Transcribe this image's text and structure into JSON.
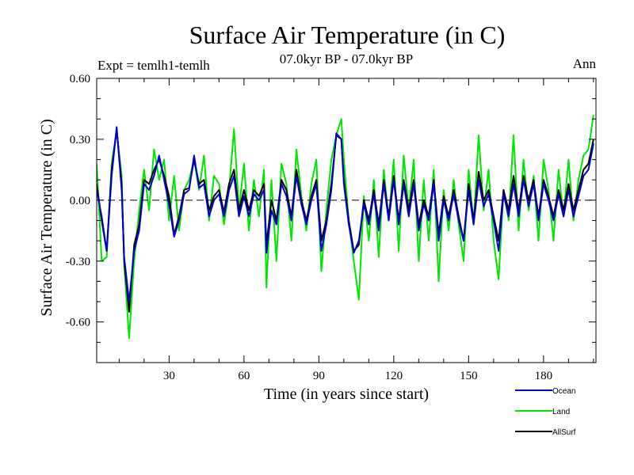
{
  "chart_data": {
    "type": "line",
    "title": "Surface Air Temperature (in C)",
    "subtitle_left": "Expt = temlh1-temlh",
    "subtitle_center": "07.0kyr BP - 07.0kyr BP",
    "subtitle_right": "Ann",
    "xlabel": "Time (in years since start)",
    "ylabel": "Surface Air Temperature (in C)",
    "xlim": [
      1,
      201
    ],
    "ylim": [
      -0.8,
      0.6
    ],
    "xticks": [
      30,
      60,
      90,
      120,
      150,
      180
    ],
    "xtick_labels": [
      "30",
      "60",
      "90",
      "120",
      "150",
      "180"
    ],
    "yticks": [
      0.6,
      0.3,
      0.0,
      -0.3,
      -0.6
    ],
    "ytick_labels": [
      "0.60",
      "0.30",
      "0.00",
      "-0.30",
      "-0.60"
    ],
    "zero_line": true,
    "series": [
      {
        "name": "Land",
        "color": "#00e600",
        "x": [
          1,
          3,
          5,
          7,
          9,
          11,
          12,
          14,
          16,
          18,
          20,
          22,
          24,
          26,
          28,
          30,
          32,
          34,
          36,
          38,
          40,
          42,
          44,
          46,
          48,
          50,
          52,
          54,
          56,
          58,
          60,
          62,
          64,
          66,
          68,
          69,
          71,
          73,
          75,
          77,
          79,
          81,
          83,
          85,
          87,
          89,
          91,
          93,
          95,
          97,
          99,
          100,
          102,
          104,
          106,
          108,
          110,
          112,
          114,
          116,
          118,
          120,
          122,
          124,
          126,
          128,
          130,
          132,
          134,
          136,
          138,
          140,
          142,
          144,
          146,
          148,
          150,
          152,
          154,
          156,
          158,
          160,
          162,
          164,
          166,
          168,
          170,
          172,
          174,
          176,
          178,
          180,
          182,
          184,
          186,
          188,
          190,
          192,
          194,
          196,
          198,
          200
        ],
        "values": [
          0.18,
          -0.3,
          -0.28,
          0.18,
          0.34,
          0.12,
          -0.32,
          -0.68,
          -0.3,
          -0.05,
          0.15,
          -0.05,
          0.25,
          0.1,
          0.2,
          -0.1,
          0.12,
          -0.15,
          0.05,
          0.1,
          0.2,
          0.05,
          0.22,
          -0.1,
          0.12,
          0.08,
          -0.12,
          0.05,
          0.35,
          -0.05,
          0.18,
          -0.15,
          0.1,
          -0.08,
          0.15,
          -0.43,
          0.1,
          -0.3,
          0.18,
          0.08,
          -0.2,
          0.25,
          0.02,
          -0.15,
          0.08,
          0.2,
          -0.35,
          -0.05,
          0.2,
          0.32,
          0.4,
          0.2,
          -0.1,
          -0.3,
          -0.49,
          0.02,
          -0.2,
          0.1,
          -0.28,
          0.15,
          -0.1,
          0.2,
          -0.25,
          0.22,
          -0.05,
          0.2,
          -0.3,
          0.1,
          -0.2,
          0.15,
          -0.4,
          0.05,
          -0.15,
          0.1,
          -0.12,
          -0.3,
          0.15,
          -0.12,
          0.32,
          -0.05,
          0.15,
          -0.2,
          -0.39,
          0.05,
          -0.1,
          0.32,
          -0.15,
          0.2,
          -0.05,
          0.12,
          -0.2,
          0.2,
          0.05,
          -0.2,
          0.15,
          -0.08,
          0.2,
          -0.1,
          0.1,
          0.22,
          0.25,
          0.42
        ]
      },
      {
        "name": "AllSurf",
        "color": "#000000",
        "x": [
          1,
          3,
          5,
          7,
          9,
          11,
          12,
          14,
          16,
          18,
          20,
          22,
          24,
          26,
          28,
          30,
          32,
          34,
          36,
          38,
          40,
          42,
          44,
          46,
          48,
          50,
          52,
          54,
          56,
          58,
          60,
          62,
          64,
          66,
          68,
          69,
          71,
          73,
          75,
          77,
          79,
          81,
          83,
          85,
          87,
          89,
          91,
          93,
          95,
          97,
          99,
          100,
          102,
          104,
          106,
          108,
          110,
          112,
          114,
          116,
          118,
          120,
          122,
          124,
          126,
          128,
          130,
          132,
          134,
          136,
          138,
          140,
          142,
          144,
          146,
          148,
          150,
          152,
          154,
          156,
          158,
          160,
          162,
          164,
          166,
          168,
          170,
          172,
          174,
          176,
          178,
          180,
          182,
          184,
          186,
          188,
          190,
          192,
          194,
          196,
          198,
          200
        ],
        "values": [
          0.08,
          -0.1,
          -0.25,
          0.15,
          0.35,
          0.08,
          -0.3,
          -0.55,
          -0.22,
          -0.12,
          0.1,
          0.08,
          0.15,
          0.2,
          0.12,
          0.02,
          -0.17,
          -0.08,
          0.05,
          0.06,
          0.2,
          0.08,
          0.1,
          -0.05,
          0.02,
          0.05,
          -0.06,
          0.08,
          0.15,
          -0.05,
          0.05,
          -0.05,
          0.05,
          0.02,
          0.08,
          -0.22,
          0.0,
          -0.1,
          0.1,
          0.05,
          -0.08,
          0.15,
          0.0,
          -0.1,
          0.02,
          0.1,
          -0.2,
          -0.1,
          0.08,
          0.32,
          0.3,
          0.1,
          -0.1,
          -0.25,
          -0.22,
          0.0,
          -0.1,
          0.05,
          -0.12,
          0.1,
          -0.08,
          0.12,
          -0.1,
          0.1,
          -0.05,
          0.1,
          -0.12,
          0.0,
          -0.08,
          0.1,
          -0.17,
          0.02,
          -0.08,
          0.05,
          -0.08,
          -0.2,
          0.08,
          -0.1,
          0.14,
          0.0,
          0.05,
          -0.08,
          -0.2,
          0.05,
          -0.05,
          0.12,
          -0.05,
          0.12,
          0.0,
          0.1,
          -0.08,
          0.1,
          0.02,
          -0.08,
          0.05,
          -0.05,
          0.08,
          -0.05,
          0.05,
          0.15,
          0.18,
          0.3
        ]
      },
      {
        "name": "Ocean",
        "color": "#0000cc",
        "x": [
          1,
          3,
          5,
          7,
          9,
          11,
          12,
          14,
          16,
          18,
          20,
          22,
          24,
          26,
          28,
          30,
          32,
          34,
          36,
          38,
          40,
          42,
          44,
          46,
          48,
          50,
          52,
          54,
          56,
          58,
          60,
          62,
          64,
          66,
          68,
          69,
          71,
          73,
          75,
          77,
          79,
          81,
          83,
          85,
          87,
          89,
          91,
          93,
          95,
          97,
          99,
          100,
          102,
          104,
          106,
          108,
          110,
          112,
          114,
          116,
          118,
          120,
          122,
          124,
          126,
          128,
          130,
          132,
          134,
          136,
          138,
          140,
          142,
          144,
          146,
          148,
          150,
          152,
          154,
          156,
          158,
          160,
          162,
          164,
          166,
          168,
          170,
          172,
          174,
          176,
          178,
          180,
          182,
          184,
          186,
          188,
          190,
          192,
          194,
          196,
          198,
          200
        ],
        "values": [
          0.05,
          -0.08,
          -0.25,
          0.12,
          0.36,
          0.05,
          -0.28,
          -0.5,
          -0.25,
          -0.15,
          0.08,
          0.05,
          0.12,
          0.22,
          0.1,
          -0.02,
          -0.18,
          -0.1,
          0.03,
          0.05,
          0.22,
          0.06,
          0.08,
          -0.08,
          0.0,
          0.03,
          -0.08,
          0.05,
          0.12,
          -0.08,
          0.02,
          -0.08,
          0.03,
          0.0,
          0.05,
          -0.26,
          -0.05,
          -0.12,
          0.08,
          0.02,
          -0.1,
          0.12,
          -0.02,
          -0.12,
          0.0,
          0.08,
          -0.25,
          -0.12,
          0.05,
          0.33,
          0.3,
          0.08,
          -0.12,
          -0.26,
          -0.2,
          -0.02,
          -0.12,
          0.03,
          -0.15,
          0.08,
          -0.1,
          0.1,
          -0.12,
          0.08,
          -0.08,
          0.08,
          -0.15,
          -0.02,
          -0.1,
          0.08,
          -0.2,
          0.0,
          -0.1,
          0.03,
          -0.1,
          -0.2,
          0.05,
          -0.12,
          0.1,
          -0.03,
          0.03,
          -0.1,
          -0.25,
          0.03,
          -0.08,
          0.08,
          -0.08,
          0.1,
          -0.03,
          0.08,
          -0.1,
          0.08,
          0.0,
          -0.1,
          0.03,
          -0.08,
          0.05,
          -0.08,
          0.02,
          0.12,
          0.15,
          0.28
        ]
      }
    ],
    "legend_order": [
      "Ocean",
      "Land",
      "AllSurf"
    ],
    "legend_position": "bottom-right"
  }
}
